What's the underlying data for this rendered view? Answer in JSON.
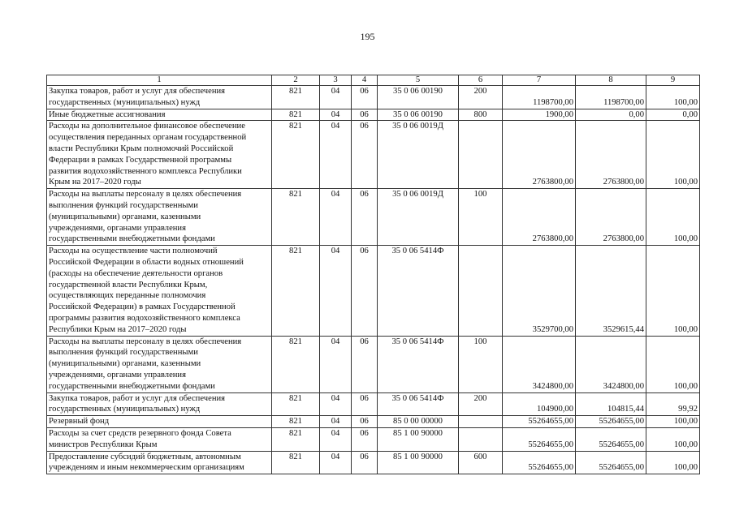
{
  "page_number": "195",
  "table": {
    "headers": [
      "1",
      "2",
      "3",
      "4",
      "5",
      "6",
      "7",
      "8",
      "9"
    ],
    "rows": [
      {
        "name": [
          "Закупка товаров, работ и услуг для обеспечения",
          "государственных (муниципальных) нужд"
        ],
        "c2": "821",
        "c3": "04",
        "c4": "06",
        "c5": "35 0 06 00190",
        "c6": "200",
        "c7": "1198700,00",
        "c8": "1198700,00",
        "c9": "100,00"
      },
      {
        "name": [
          "Иные бюджетные ассигнования"
        ],
        "c2": "821",
        "c3": "04",
        "c4": "06",
        "c5": "35 0 06 00190",
        "c6": "800",
        "c7": "1900,00",
        "c8": "0,00",
        "c9": "0,00"
      },
      {
        "name": [
          "Расходы на дополнительное финансовое обеспечение",
          "осуществления переданных органам государственной",
          "власти Республики Крым полномочий Российской",
          "Федерации в рамках Государственной программы",
          "развития водохозяйственного комплекса Республики",
          "Крым на 2017–2020 годы"
        ],
        "c2": "821",
        "c3": "04",
        "c4": "06",
        "c5": "35 0 06 0019Д",
        "c6": "",
        "c7": "2763800,00",
        "c8": "2763800,00",
        "c9": "100,00"
      },
      {
        "name": [
          "Расходы на выплаты персоналу в целях обеспечения",
          "выполнения функций государственными",
          "(муниципальными) органами, казенными",
          "учреждениями, органами управления",
          "государственными внебюджетными фондами"
        ],
        "c2": "821",
        "c3": "04",
        "c4": "06",
        "c5": "35 0 06 0019Д",
        "c6": "100",
        "c7": "2763800,00",
        "c8": "2763800,00",
        "c9": "100,00"
      },
      {
        "name": [
          "Расходы на осуществление части полномочий",
          "Российской Федерации в области водных отношений",
          "(расходы на обеспечение деятельности органов",
          "государственной власти Республики Крым,",
          "осуществляющих переданные полномочия",
          "Российской Федерации) в рамках Государственной",
          "программы развития водохозяйственного комплекса",
          "Республики Крым на 2017–2020 годы"
        ],
        "c2": "821",
        "c3": "04",
        "c4": "06",
        "c5": "35 0 06 5414Ф",
        "c6": "",
        "c7": "3529700,00",
        "c8": "3529615,44",
        "c9": "100,00"
      },
      {
        "name": [
          "Расходы на выплаты персоналу в целях обеспечения",
          "выполнения функций государственными",
          "(муниципальными) органами, казенными",
          "учреждениями, органами управления",
          "государственными внебюджетными фондами"
        ],
        "c2": "821",
        "c3": "04",
        "c4": "06",
        "c5": "35 0 06 5414Ф",
        "c6": "100",
        "c7": "3424800,00",
        "c8": "3424800,00",
        "c9": "100,00"
      },
      {
        "name": [
          "Закупка товаров, работ и услуг для обеспечения",
          "государственных (муниципальных) нужд"
        ],
        "c2": "821",
        "c3": "04",
        "c4": "06",
        "c5": "35 0 06 5414Ф",
        "c6": "200",
        "c7": "104900,00",
        "c8": "104815,44",
        "c9": "99,92"
      },
      {
        "name": [
          "Резервный фонд"
        ],
        "c2": "821",
        "c3": "04",
        "c4": "06",
        "c5": "85 0 00 00000",
        "c6": "",
        "c7": "55264655,00",
        "c8": "55264655,00",
        "c9": "100,00"
      },
      {
        "name": [
          "Расходы за счет средств резервного фонда Совета",
          "министров Республики Крым"
        ],
        "c2": "821",
        "c3": "04",
        "c4": "06",
        "c5": "85 1 00 90000",
        "c6": "",
        "c7": "55264655,00",
        "c8": "55264655,00",
        "c9": "100,00"
      },
      {
        "name": [
          "Предоставление субсидий бюджетным, автономным",
          "учреждениям и иным некоммерческим организациям"
        ],
        "c2": "821",
        "c3": "04",
        "c4": "06",
        "c5": "85 1 00 90000",
        "c6": "600",
        "c7": "55264655,00",
        "c8": "55264655,00",
        "c9": "100,00"
      }
    ]
  }
}
